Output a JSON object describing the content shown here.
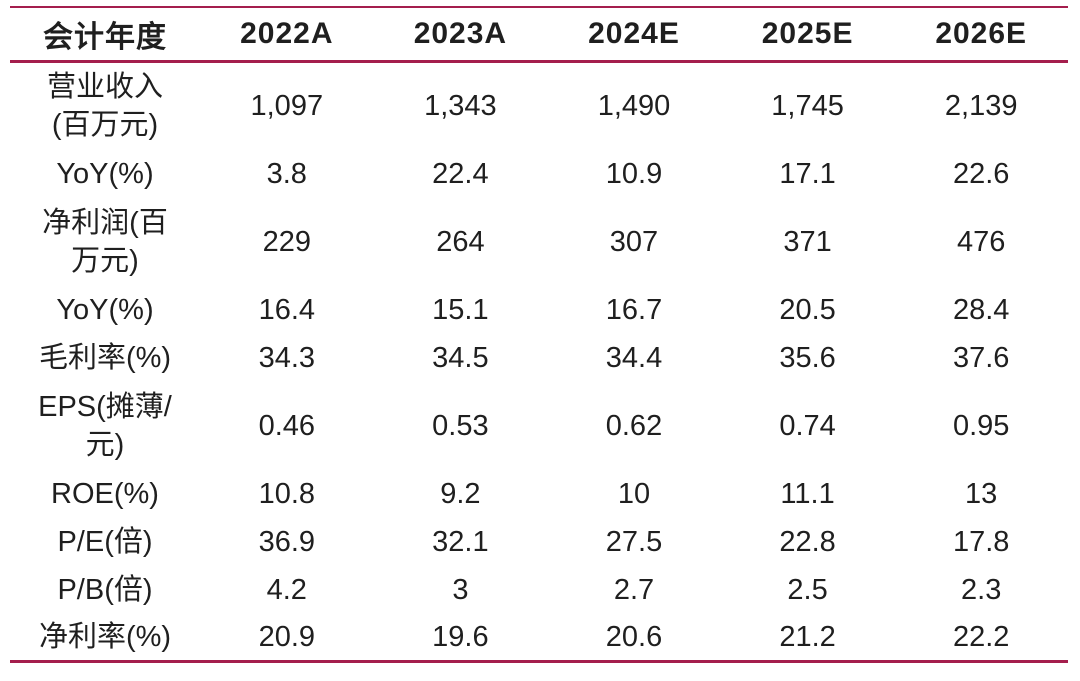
{
  "colors": {
    "accent_line": "#a41e4d",
    "text": "#1f1f1f",
    "background": "#ffffff"
  },
  "table": {
    "header": {
      "label_col": "会计年度",
      "columns": [
        "2022A",
        "2023A",
        "2024E",
        "2025E",
        "2026E"
      ]
    },
    "rows": [
      {
        "label": "营业收入\n(百万元)",
        "two_line": true,
        "values": [
          "1,097",
          "1,343",
          "1,490",
          "1,745",
          "2,139"
        ]
      },
      {
        "label": "YoY(%)",
        "two_line": false,
        "values": [
          "3.8",
          "22.4",
          "10.9",
          "17.1",
          "22.6"
        ]
      },
      {
        "label": "净利润(百\n万元)",
        "two_line": true,
        "values": [
          "229",
          "264",
          "307",
          "371",
          "476"
        ]
      },
      {
        "label": "YoY(%)",
        "two_line": false,
        "values": [
          "16.4",
          "15.1",
          "16.7",
          "20.5",
          "28.4"
        ]
      },
      {
        "label": "毛利率(%)",
        "two_line": false,
        "values": [
          "34.3",
          "34.5",
          "34.4",
          "35.6",
          "37.6"
        ]
      },
      {
        "label": "EPS(摊薄/\n元)",
        "two_line": true,
        "values": [
          "0.46",
          "0.53",
          "0.62",
          "0.74",
          "0.95"
        ]
      },
      {
        "label": "ROE(%)",
        "two_line": false,
        "values": [
          "10.8",
          "9.2",
          "10",
          "11.1",
          "13"
        ]
      },
      {
        "label": "P/E(倍)",
        "two_line": false,
        "values": [
          "36.9",
          "32.1",
          "27.5",
          "22.8",
          "17.8"
        ]
      },
      {
        "label": "P/B(倍)",
        "two_line": false,
        "values": [
          "4.2",
          "3",
          "2.7",
          "2.5",
          "2.3"
        ]
      },
      {
        "label": "净利率(%)",
        "two_line": false,
        "values": [
          "20.9",
          "19.6",
          "20.6",
          "21.2",
          "22.2"
        ]
      }
    ]
  }
}
